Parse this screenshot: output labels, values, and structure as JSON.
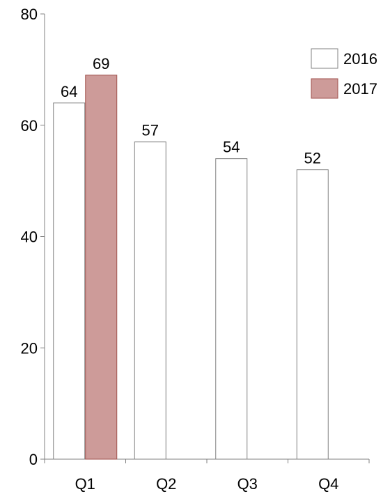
{
  "chart_data": {
    "type": "bar",
    "categories": [
      "Q1",
      "Q2",
      "Q3",
      "Q4"
    ],
    "series": [
      {
        "name": "2016",
        "values": [
          64,
          57,
          54,
          52
        ],
        "fill": "#ffffff",
        "stroke": "#808080"
      },
      {
        "name": "2017",
        "values": [
          69,
          null,
          null,
          null
        ],
        "fill": "#cd9b99",
        "stroke": "#a0524d"
      }
    ],
    "title": "",
    "xlabel": "",
    "ylabel": "",
    "ylim": [
      0,
      80
    ],
    "yticks": [
      0,
      20,
      40,
      60,
      80
    ],
    "ytick_labels": [
      "0",
      "20",
      "40",
      "60",
      "80"
    ],
    "grid": false,
    "legend_position": "top-right",
    "data_labels": true
  }
}
